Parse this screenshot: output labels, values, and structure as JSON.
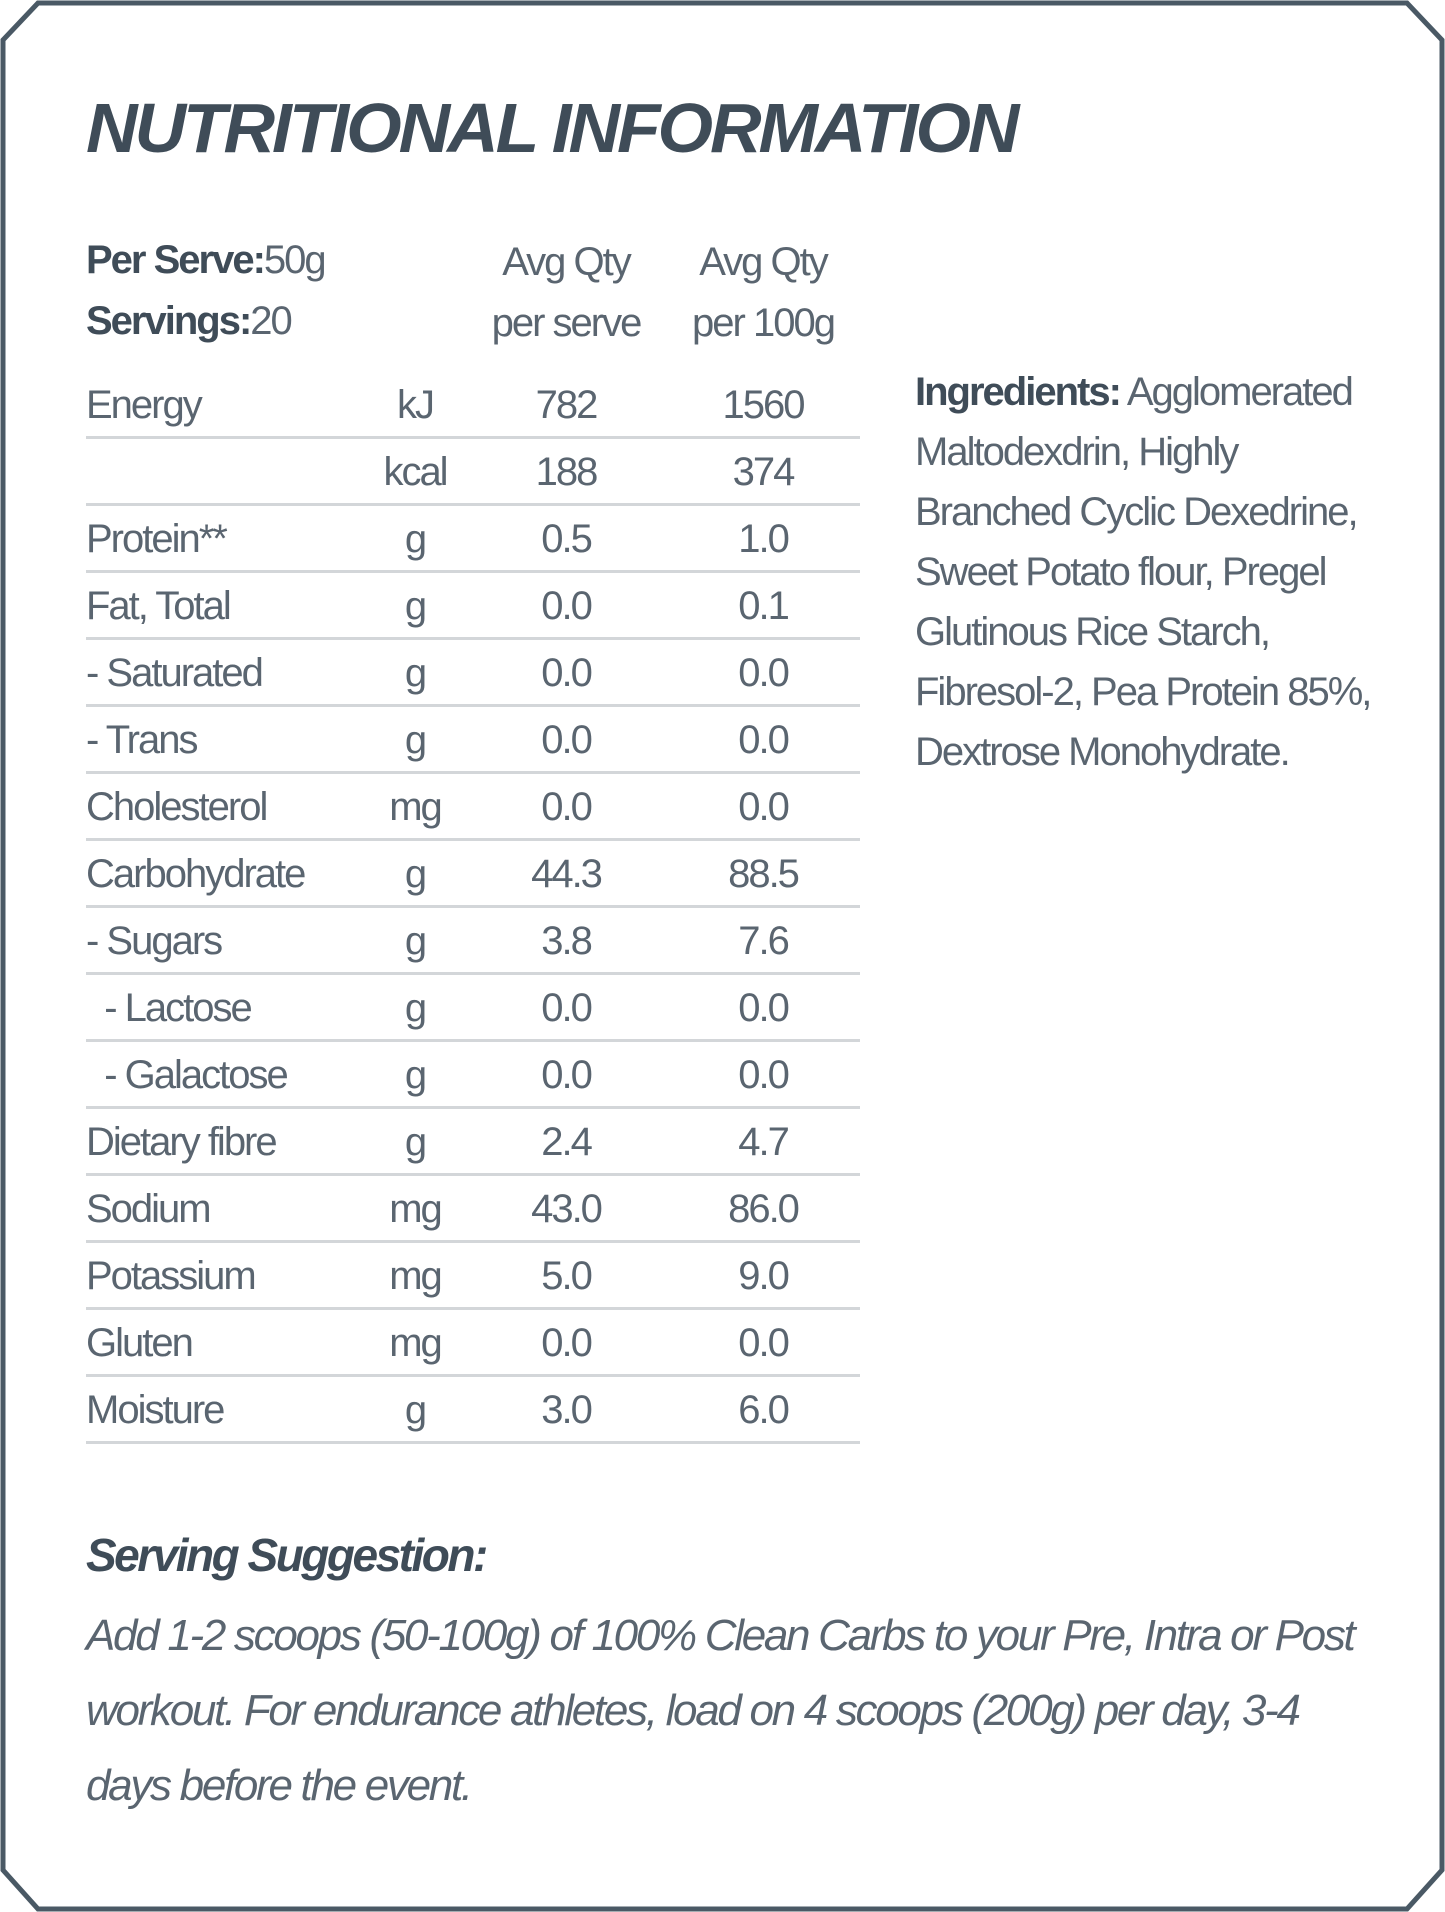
{
  "title": "NUTRITIONAL INFORMATION",
  "per_serve_label": "Per Serve:",
  "per_serve_value": "50g",
  "servings_label": "Servings:",
  "servings_value": "20",
  "col_serve": [
    "Avg Qty",
    "per serve"
  ],
  "col_100g": [
    "Avg Qty",
    "per 100g"
  ],
  "rows": [
    {
      "name": "Energy",
      "unit": "kJ",
      "serve": "782",
      "per100": "1560"
    },
    {
      "name": "",
      "unit": "kcal",
      "serve": "188",
      "per100": "374"
    },
    {
      "name": "Protein**",
      "unit": "g",
      "serve": "0.5",
      "per100": "1.0"
    },
    {
      "name": "Fat, Total",
      "unit": "g",
      "serve": "0.0",
      "per100": "0.1"
    },
    {
      "name": "- Saturated",
      "unit": "g",
      "serve": "0.0",
      "per100": "0.0"
    },
    {
      "name": "- Trans",
      "unit": "g",
      "serve": "0.0",
      "per100": "0.0"
    },
    {
      "name": "Cholesterol",
      "unit": "mg",
      "serve": "0.0",
      "per100": "0.0"
    },
    {
      "name": "Carbohydrate",
      "unit": "g",
      "serve": "44.3",
      "per100": "88.5"
    },
    {
      "name": "- Sugars",
      "unit": "g",
      "serve": "3.8",
      "per100": "7.6"
    },
    {
      "name": "  - Lactose",
      "unit": "g",
      "serve": "0.0",
      "per100": "0.0"
    },
    {
      "name": "  - Galactose",
      "unit": "g",
      "serve": "0.0",
      "per100": "0.0"
    },
    {
      "name": "Dietary fibre",
      "unit": "g",
      "serve": "2.4",
      "per100": "4.7"
    },
    {
      "name": "Sodium",
      "unit": "mg",
      "serve": "43.0",
      "per100": "86.0"
    },
    {
      "name": "Potassium",
      "unit": "mg",
      "serve": "5.0",
      "per100": "9.0"
    },
    {
      "name": "Gluten",
      "unit": "mg",
      "serve": "0.0",
      "per100": "0.0"
    },
    {
      "name": "Moisture",
      "unit": "g",
      "serve": "3.0",
      "per100": "6.0"
    }
  ],
  "ingredients_label": "Ingredients:",
  "ingredients_text": "Agglomerated Maltodexdrin, Highly Branched Cyclic Dexedrine, Sweet Potato flour, Pregel Glutinous Rice Starch, Fibresol-2, Pea Protein 85%, Dextrose Monohydrate.",
  "serving_suggestion_title": "Serving Suggestion:",
  "serving_suggestion_text": "Add 1-2 scoops (50-100g) of 100% Clean Carbs to your Pre, Intra or Post workout. For endurance athletes, load on 4 scoops (200g) per day, 3-4 days before the event.",
  "colors": {
    "border": "#4a5965",
    "heading": "#3f4c58",
    "text": "#5a6570",
    "rule": "#d3d6d9"
  }
}
